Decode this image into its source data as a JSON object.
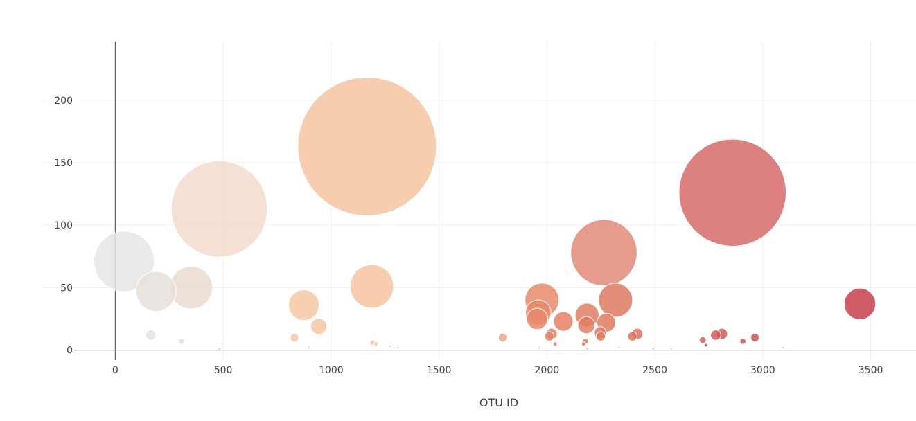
{
  "chart_data": {
    "type": "scatter",
    "title": "",
    "xlabel": "OTU ID",
    "ylabel": "",
    "xlim": [
      -335,
      3710
    ],
    "ylim": [
      -8,
      247
    ],
    "xticks": [
      0,
      500,
      1000,
      1500,
      2000,
      2500,
      3000,
      3500
    ],
    "yticks": [
      0,
      50,
      100,
      150,
      200
    ],
    "grid": true,
    "colorscale": "Reds, colored by OTU ID",
    "points": [
      {
        "x": 41,
        "y": 71,
        "size": 71,
        "color": "#e6e6e6"
      },
      {
        "x": 189,
        "y": 47,
        "size": 47,
        "color": "#e6e0dc"
      },
      {
        "x": 165,
        "y": 12,
        "size": 12,
        "color": "#e6e2df"
      },
      {
        "x": 307,
        "y": 7,
        "size": 7,
        "color": "#e8ddd6"
      },
      {
        "x": 352,
        "y": 50,
        "size": 50,
        "color": "#e9dad0"
      },
      {
        "x": 482,
        "y": 113,
        "size": 113,
        "color": "#f3dbcc"
      },
      {
        "x": 830,
        "y": 10,
        "size": 10,
        "color": "#f5c9a8"
      },
      {
        "x": 874,
        "y": 36,
        "size": 36,
        "color": "#f6c8a5"
      },
      {
        "x": 943,
        "y": 19,
        "size": 19,
        "color": "#f6c6a1"
      },
      {
        "x": 1167,
        "y": 163,
        "size": 163,
        "color": "#f6c4a1"
      },
      {
        "x": 1189,
        "y": 51,
        "size": 51,
        "color": "#f6c4a0"
      },
      {
        "x": 1192,
        "y": 6,
        "size": 6,
        "color": "#f6c4a0"
      },
      {
        "x": 1208,
        "y": 5,
        "size": 5,
        "color": "#f6c3a0"
      },
      {
        "x": 1795,
        "y": 10,
        "size": 10,
        "color": "#eea584"
      },
      {
        "x": 1977,
        "y": 40,
        "size": 40,
        "color": "#e8896c"
      },
      {
        "x": 1960,
        "y": 30,
        "size": 30,
        "color": "#e98a6b"
      },
      {
        "x": 1955,
        "y": 25,
        "size": 25,
        "color": "#e8876a"
      },
      {
        "x": 2022,
        "y": 13,
        "size": 13,
        "color": "#e68467"
      },
      {
        "x": 2011,
        "y": 11,
        "size": 11,
        "color": "#e68467"
      },
      {
        "x": 2038,
        "y": 5,
        "size": 5,
        "color": "#e68366"
      },
      {
        "x": 2076,
        "y": 23,
        "size": 23,
        "color": "#e58265"
      },
      {
        "x": 2186,
        "y": 28,
        "size": 28,
        "color": "#e27e62"
      },
      {
        "x": 2183,
        "y": 20,
        "size": 20,
        "color": "#e27e62"
      },
      {
        "x": 2178,
        "y": 7,
        "size": 7,
        "color": "#e27e62"
      },
      {
        "x": 2170,
        "y": 5,
        "size": 5,
        "color": "#e27e62"
      },
      {
        "x": 2264,
        "y": 78,
        "size": 78,
        "color": "#e08b78"
      },
      {
        "x": 2247,
        "y": 14,
        "size": 14,
        "color": "#e07d63"
      },
      {
        "x": 2249,
        "y": 11,
        "size": 11,
        "color": "#e07d63"
      },
      {
        "x": 2275,
        "y": 22,
        "size": 22,
        "color": "#df7a60"
      },
      {
        "x": 2318,
        "y": 40,
        "size": 40,
        "color": "#de7a61"
      },
      {
        "x": 2396,
        "y": 11,
        "size": 11,
        "color": "#dc7460"
      },
      {
        "x": 2419,
        "y": 13,
        "size": 13,
        "color": "#db725f"
      },
      {
        "x": 2722,
        "y": 8,
        "size": 8,
        "color": "#d5605c"
      },
      {
        "x": 2737,
        "y": 4,
        "size": 4,
        "color": "#d45f5b"
      },
      {
        "x": 2782,
        "y": 12,
        "size": 12,
        "color": "#d35c5a"
      },
      {
        "x": 2811,
        "y": 13,
        "size": 13,
        "color": "#d25a59"
      },
      {
        "x": 2860,
        "y": 126,
        "size": 126,
        "color": "#d66b6a"
      },
      {
        "x": 2908,
        "y": 7,
        "size": 7,
        "color": "#cf5657"
      },
      {
        "x": 2964,
        "y": 10,
        "size": 10,
        "color": "#ce5356"
      },
      {
        "x": 3450,
        "y": 37,
        "size": 37,
        "color": "#c8404e"
      }
    ],
    "small_points": [
      {
        "x": 483,
        "y": 1
      },
      {
        "x": 898,
        "y": 2
      },
      {
        "x": 1275,
        "y": 3
      },
      {
        "x": 1310,
        "y": 2
      },
      {
        "x": 1963,
        "y": 2
      },
      {
        "x": 2187,
        "y": 1
      },
      {
        "x": 2334,
        "y": 2
      },
      {
        "x": 2493,
        "y": 1
      },
      {
        "x": 2575,
        "y": 1
      },
      {
        "x": 3095,
        "y": 2
      }
    ]
  }
}
